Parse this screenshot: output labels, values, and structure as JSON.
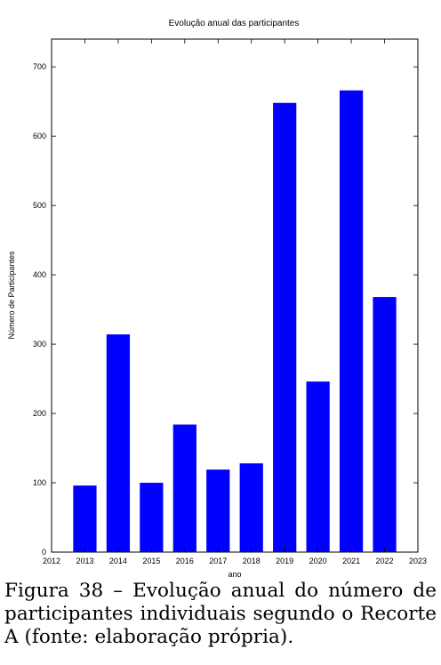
{
  "chart_data": {
    "type": "bar",
    "title": "Evolução anual das participantes",
    "xlabel": "ano",
    "ylabel": "Número de Participantes",
    "x": [
      2013,
      2014,
      2015,
      2016,
      2017,
      2018,
      2019,
      2020,
      2021,
      2022
    ],
    "values": [
      96,
      314,
      100,
      184,
      119,
      128,
      648,
      246,
      666,
      368
    ],
    "xlim": [
      2012,
      2023
    ],
    "ylim": [
      0,
      740
    ],
    "xticks": [
      "2012",
      "2013",
      "2014",
      "2015",
      "2016",
      "2017",
      "2018",
      "2019",
      "2020",
      "2021",
      "2022",
      "2023"
    ],
    "yticks": [
      "0",
      "100",
      "200",
      "300",
      "400",
      "500",
      "600",
      "700"
    ],
    "bar_color": "#0000ff",
    "grid": false,
    "legend": false
  },
  "caption": "Figura 38 – Evolução anual do número de participantes individuais segundo o Recorte A (fonte: elaboração própria)."
}
